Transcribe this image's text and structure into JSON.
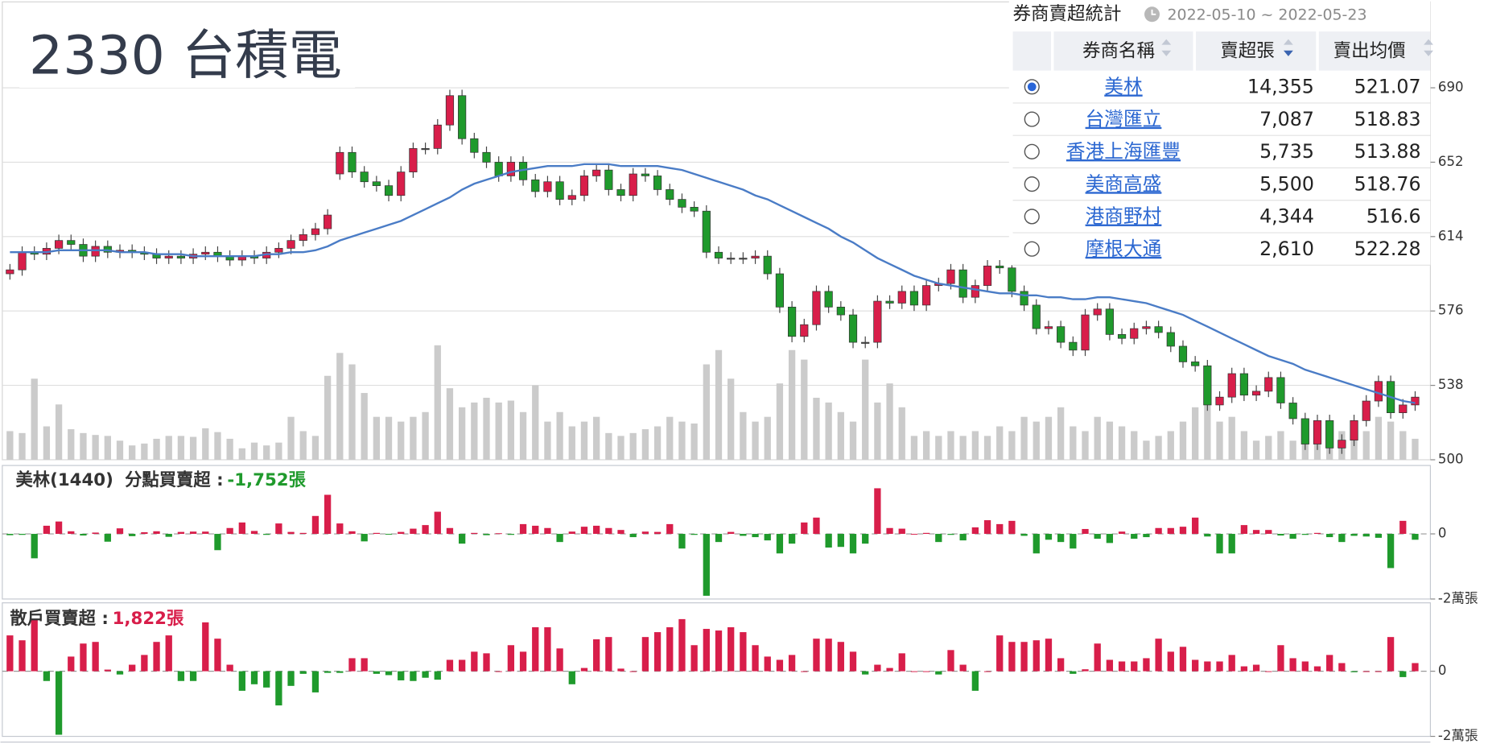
{
  "header": {
    "title": "2330 台積電"
  },
  "chart_data": [
    {
      "type": "candlestick",
      "ylim": [
        500,
        729
      ],
      "yticks": [
        500,
        538,
        576,
        614,
        652,
        690
      ],
      "grid": true,
      "up_color": "#d81e4a",
      "down_color": "#1f9a2c",
      "open": [
        595,
        597,
        606,
        605,
        608,
        612,
        610,
        604,
        609,
        606,
        607,
        606,
        605,
        603,
        604,
        603,
        605,
        606,
        604,
        602,
        604,
        603,
        606,
        608,
        612,
        615,
        618,
        646,
        657,
        647,
        642,
        640,
        635,
        647,
        659,
        659,
        671,
        686,
        664,
        657,
        652,
        645,
        652,
        643,
        637,
        642,
        633,
        635,
        645,
        648,
        638,
        635,
        646,
        645,
        638,
        633,
        629,
        627,
        606,
        603,
        603,
        603,
        604,
        595,
        578,
        563,
        569,
        586,
        578,
        574,
        560,
        560,
        581,
        580,
        586,
        579,
        589,
        590,
        597,
        583,
        589,
        599,
        598,
        586,
        579,
        567,
        568,
        560,
        556,
        574,
        577,
        564,
        562,
        567,
        568,
        565,
        558,
        550,
        548,
        528,
        532,
        544,
        533,
        535,
        542,
        529,
        521,
        508,
        520,
        506,
        510,
        520,
        530,
        540,
        524,
        528
      ],
      "high": [
        600,
        609,
        609,
        611,
        615,
        615,
        613,
        612,
        612,
        610,
        610,
        609,
        608,
        607,
        607,
        608,
        609,
        609,
        607,
        607,
        607,
        609,
        611,
        615,
        618,
        621,
        628,
        660,
        660,
        650,
        645,
        643,
        650,
        662,
        662,
        674,
        689,
        689,
        667,
        660,
        655,
        655,
        655,
        646,
        645,
        645,
        638,
        648,
        651,
        651,
        641,
        649,
        649,
        648,
        641,
        636,
        632,
        630,
        609,
        606,
        606,
        607,
        607,
        598,
        581,
        572,
        589,
        589,
        581,
        577,
        563,
        584,
        584,
        589,
        589,
        592,
        593,
        600,
        600,
        592,
        602,
        602,
        601,
        589,
        582,
        571,
        571,
        563,
        577,
        580,
        580,
        567,
        570,
        571,
        571,
        568,
        561,
        553,
        551,
        535,
        547,
        547,
        538,
        545,
        545,
        532,
        524,
        523,
        523,
        513,
        523,
        533,
        543,
        543,
        531,
        535
      ],
      "low": [
        592,
        594,
        602,
        602,
        605,
        607,
        601,
        601,
        603,
        603,
        603,
        602,
        600,
        600,
        600,
        600,
        602,
        601,
        599,
        599,
        600,
        600,
        603,
        605,
        609,
        612,
        615,
        643,
        644,
        639,
        637,
        632,
        632,
        644,
        656,
        656,
        668,
        661,
        654,
        649,
        642,
        642,
        640,
        634,
        634,
        630,
        630,
        632,
        642,
        635,
        632,
        632,
        642,
        635,
        630,
        626,
        624,
        603,
        600,
        600,
        600,
        600,
        592,
        575,
        560,
        560,
        566,
        575,
        571,
        557,
        557,
        557,
        577,
        577,
        576,
        576,
        586,
        587,
        580,
        580,
        586,
        595,
        583,
        576,
        564,
        564,
        557,
        553,
        553,
        571,
        561,
        559,
        559,
        564,
        562,
        555,
        547,
        545,
        525,
        525,
        529,
        530,
        530,
        532,
        526,
        518,
        505,
        505,
        503,
        503,
        507,
        517,
        527,
        521,
        521,
        525
      ],
      "close": [
        597,
        606,
        605,
        608,
        612,
        610,
        604,
        609,
        606,
        607,
        606,
        605,
        603,
        604,
        603,
        605,
        606,
        604,
        602,
        604,
        603,
        606,
        608,
        612,
        615,
        618,
        625,
        657,
        647,
        642,
        640,
        635,
        647,
        659,
        659,
        671,
        686,
        664,
        657,
        652,
        645,
        652,
        643,
        637,
        642,
        633,
        635,
        645,
        648,
        638,
        635,
        646,
        645,
        638,
        633,
        629,
        627,
        606,
        603,
        603,
        603,
        604,
        595,
        578,
        563,
        569,
        586,
        578,
        574,
        560,
        560,
        581,
        580,
        586,
        579,
        589,
        590,
        597,
        583,
        589,
        599,
        598,
        586,
        579,
        567,
        568,
        560,
        556,
        574,
        577,
        564,
        562,
        567,
        568,
        565,
        558,
        550,
        548,
        528,
        532,
        544,
        533,
        535,
        542,
        529,
        521,
        508,
        520,
        506,
        510,
        520,
        530,
        540,
        524,
        528,
        532
      ],
      "ma": {
        "color": "#4a7cc6",
        "values": [
          606,
          606,
          606,
          606,
          607,
          607,
          607,
          607,
          607,
          606,
          606,
          606,
          605,
          605,
          605,
          604,
          604,
          604,
          604,
          604,
          604,
          605,
          605,
          606,
          606,
          607,
          609,
          612,
          614,
          616,
          618,
          620,
          622,
          625,
          628,
          631,
          634,
          638,
          641,
          643,
          645,
          647,
          648,
          649,
          650,
          650,
          650,
          651,
          651,
          651,
          650,
          650,
          650,
          650,
          649,
          648,
          646,
          644,
          642,
          640,
          638,
          635,
          633,
          630,
          627,
          624,
          621,
          618,
          614,
          611,
          607,
          603,
          600,
          597,
          594,
          592,
          590,
          589,
          588,
          587,
          586,
          585,
          585,
          584,
          584,
          583,
          583,
          582,
          582,
          583,
          583,
          582,
          581,
          580,
          578,
          576,
          574,
          571,
          568,
          565,
          562,
          559,
          556,
          553,
          551,
          549,
          546,
          544,
          542,
          540,
          538,
          536,
          534,
          532,
          530,
          529
        ]
      },
      "volume": {
        "color": "#cbcbcb",
        "ylim": [
          0,
          470
        ],
        "values": [
          30,
          28,
          85,
          35,
          58,
          32,
          28,
          26,
          25,
          20,
          15,
          17,
          22,
          25,
          25,
          24,
          33,
          29,
          22,
          12,
          18,
          15,
          18,
          45,
          30,
          25,
          88,
          112,
          100,
          70,
          45,
          45,
          40,
          45,
          50,
          120,
          75,
          55,
          60,
          65,
          60,
          62,
          50,
          78,
          40,
          50,
          35,
          40,
          45,
          28,
          25,
          28,
          32,
          35,
          45,
          40,
          38,
          100,
          115,
          85,
          50,
          40,
          45,
          80,
          115,
          105,
          65,
          60,
          50,
          40,
          105,
          60,
          80,
          55,
          25,
          30,
          25,
          30,
          25,
          30,
          25,
          35,
          30,
          45,
          40,
          45,
          55,
          35,
          30,
          45,
          40,
          35,
          30,
          20,
          25,
          30,
          40,
          55,
          60,
          40,
          45,
          30,
          20,
          25,
          30,
          20,
          40,
          35,
          40,
          30,
          35,
          30,
          45,
          40,
          30,
          22
        ]
      }
    },
    {
      "type": "bar",
      "title": "美林(1440)",
      "subtitle": "分點買賣超 :",
      "total": -1752,
      "total_label": "-1,752張",
      "up_color": "#d81e4a",
      "down_color": "#1f9a2c",
      "ylim": [
        -20000,
        21000
      ],
      "yticks": [
        0,
        {
          "value": -20000,
          "label": "-2萬張"
        }
      ],
      "values": [
        -400,
        -300,
        -7500,
        2500,
        3800,
        800,
        -500,
        400,
        -2400,
        1700,
        -700,
        500,
        800,
        -900,
        600,
        700,
        700,
        -5000,
        1800,
        3500,
        900,
        -300,
        3200,
        600,
        300,
        5500,
        12000,
        3200,
        800,
        -2300,
        300,
        -200,
        600,
        1600,
        2700,
        6800,
        1800,
        -3000,
        300,
        -400,
        200,
        -300,
        3000,
        2500,
        1800,
        -2500,
        700,
        2200,
        2500,
        1800,
        1200,
        -1000,
        700,
        600,
        3000,
        -4500,
        -300,
        -19000,
        -2500,
        600,
        -600,
        -1000,
        -2000,
        -6000,
        -3000,
        3500,
        5000,
        -4200,
        -4000,
        -6000,
        -3000,
        14000,
        1800,
        1600,
        0,
        300,
        -2500,
        -300,
        -2000,
        2000,
        4200,
        3000,
        4000,
        -600,
        -6000,
        -1800,
        -2500,
        -4500,
        1500,
        -1500,
        -2800,
        700,
        -1500,
        -1000,
        1800,
        1800,
        2200,
        5000,
        -800,
        -6000,
        -6000,
        2700,
        1200,
        1200,
        -500,
        -1500,
        -300,
        300,
        -1000,
        -2500,
        -600,
        -800,
        -1200,
        -10500,
        4000,
        -1800
      ]
    },
    {
      "type": "bar",
      "subtitle": "散戶買賣超 :",
      "total": 1822,
      "total_label": "1,822張",
      "up_color": "#d81e4a",
      "down_color": "#1f9a2c",
      "ylim": [
        -20000,
        21000
      ],
      "yticks": [
        0,
        {
          "value": -20000,
          "label": "-2萬張"
        }
      ],
      "values": [
        11000,
        9500,
        16000,
        -3000,
        -19500,
        4500,
        8500,
        9000,
        500,
        -1000,
        2000,
        5000,
        9000,
        11000,
        -3000,
        -3000,
        15000,
        10000,
        2000,
        -6000,
        -4000,
        -5000,
        -10500,
        -4500,
        -800,
        -6500,
        -500,
        -500,
        4000,
        4000,
        -800,
        -1200,
        -2800,
        -3000,
        -2000,
        -2600,
        3500,
        3500,
        6000,
        5500,
        0,
        8000,
        6000,
        13500,
        13500,
        7000,
        -4000,
        1000,
        9800,
        10500,
        800,
        0,
        10500,
        12000,
        13500,
        16000,
        8000,
        13000,
        12500,
        13500,
        12000,
        8000,
        4500,
        3500,
        5000,
        0,
        10000,
        10000,
        9000,
        6000,
        -1000,
        2000,
        1000,
        5500,
        0,
        0,
        -1000,
        6500,
        2000,
        -6000,
        0,
        11000,
        9000,
        9000,
        9500,
        10000,
        4000,
        -800,
        600,
        8500,
        3500,
        3000,
        3000,
        4000,
        10000,
        6000,
        7500,
        3500,
        3000,
        3000,
        5000,
        1500,
        2000,
        0,
        8000,
        4000,
        3000,
        1500,
        5000,
        2500,
        -300,
        0,
        0,
        10500,
        -1800,
        2500
      ]
    }
  ],
  "table": {
    "title": "券商賣超統計",
    "date_range": "2022-05-10 ~ 2022-05-23",
    "columns": [
      "券商名稱",
      "賣超張",
      "賣出均價"
    ],
    "selected": 0,
    "rows": [
      [
        "美林",
        "14,355",
        "521.07"
      ],
      [
        "台灣匯立",
        "7,087",
        "518.83"
      ],
      [
        "香港上海匯豐",
        "5,735",
        "513.88"
      ],
      [
        "美商高盛",
        "5,500",
        "518.76"
      ],
      [
        "港商野村",
        "4,344",
        "516.6"
      ],
      [
        "摩根大通",
        "2,610",
        "522.28"
      ]
    ]
  }
}
